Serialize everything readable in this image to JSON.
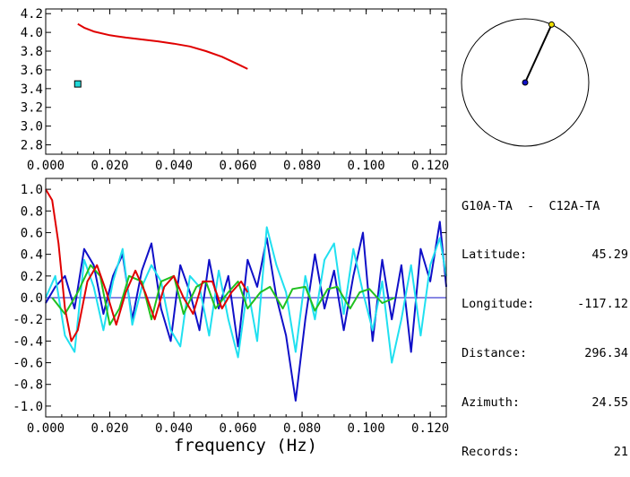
{
  "chart_data": [
    {
      "type": "line",
      "title": "",
      "xlabel": "",
      "ylabel": "",
      "xlim": [
        0.0,
        0.125
      ],
      "ylim": [
        2.7,
        4.25
      ],
      "xticks": [
        "0.000",
        "0.020",
        "0.040",
        "0.060",
        "0.080",
        "0.100",
        "0.120"
      ],
      "xtick_values": [
        0.0,
        0.02,
        0.04,
        0.06,
        0.08,
        0.1,
        0.12
      ],
      "yticks": [
        "2.8",
        "3.0",
        "3.2",
        "3.4",
        "3.6",
        "3.8",
        "4.0",
        "4.2"
      ],
      "ytick_values": [
        2.8,
        3.0,
        3.2,
        3.4,
        3.6,
        3.8,
        4.0,
        4.2
      ],
      "series": [
        {
          "color": "#e00000",
          "x": [
            0.01,
            0.012,
            0.015,
            0.02,
            0.025,
            0.03,
            0.035,
            0.04,
            0.045,
            0.05,
            0.055,
            0.06,
            0.063
          ],
          "y": [
            4.09,
            4.05,
            4.01,
            3.97,
            3.945,
            3.925,
            3.905,
            3.88,
            3.85,
            3.8,
            3.74,
            3.66,
            3.61
          ]
        },
        {
          "color": "#20d8d8",
          "marker": "square",
          "x": [
            0.01
          ],
          "y": [
            3.45
          ]
        }
      ]
    },
    {
      "type": "line",
      "title": "",
      "xlabel": "frequency (Hz)",
      "ylabel": "",
      "xlim": [
        0.0,
        0.125
      ],
      "ylim": [
        -1.1,
        1.1
      ],
      "xticks": [
        "0.000",
        "0.020",
        "0.040",
        "0.060",
        "0.080",
        "0.100",
        "0.120"
      ],
      "xtick_values": [
        0.0,
        0.02,
        0.04,
        0.06,
        0.08,
        0.1,
        0.12
      ],
      "yticks": [
        "1.0",
        "0.8",
        "0.6",
        "0.4",
        "0.2",
        "0.0",
        "-0.2",
        "-0.4",
        "-0.6",
        "-0.8",
        "-1.0"
      ],
      "ytick_values": [
        1.0,
        0.8,
        0.6,
        0.4,
        0.2,
        0.0,
        -0.2,
        -0.4,
        -0.6,
        -0.8,
        -1.0
      ],
      "zero_line": true,
      "series": [
        {
          "color": "#1010c8",
          "x": [
            0.0,
            0.003,
            0.006,
            0.009,
            0.012,
            0.015,
            0.018,
            0.021,
            0.024,
            0.027,
            0.03,
            0.033,
            0.036,
            0.039,
            0.042,
            0.045,
            0.048,
            0.051,
            0.054,
            0.057,
            0.06,
            0.063,
            0.066,
            0.069,
            0.072,
            0.075,
            0.078,
            0.081,
            0.084,
            0.087,
            0.09,
            0.093,
            0.096,
            0.099,
            0.102,
            0.105,
            0.108,
            0.111,
            0.114,
            0.117,
            0.12,
            0.123,
            0.125
          ],
          "y": [
            -0.05,
            0.1,
            0.2,
            -0.1,
            0.45,
            0.3,
            -0.15,
            0.2,
            0.4,
            -0.2,
            0.25,
            0.5,
            -0.1,
            -0.4,
            0.3,
            0.05,
            -0.3,
            0.35,
            -0.1,
            0.2,
            -0.45,
            0.35,
            0.1,
            0.55,
            0.0,
            -0.35,
            -0.95,
            -0.2,
            0.4,
            -0.1,
            0.25,
            -0.3,
            0.2,
            0.6,
            -0.4,
            0.35,
            -0.2,
            0.3,
            -0.5,
            0.45,
            0.15,
            0.7,
            0.1
          ]
        },
        {
          "color": "#20e0f0",
          "x": [
            0.0,
            0.003,
            0.006,
            0.009,
            0.012,
            0.015,
            0.018,
            0.021,
            0.024,
            0.027,
            0.03,
            0.033,
            0.036,
            0.039,
            0.042,
            0.045,
            0.048,
            0.051,
            0.054,
            0.057,
            0.06,
            0.063,
            0.066,
            0.069,
            0.072,
            0.075,
            0.078,
            0.081,
            0.084,
            0.087,
            0.09,
            0.093,
            0.096,
            0.099,
            0.102,
            0.105,
            0.108,
            0.111,
            0.114,
            0.117,
            0.12,
            0.123,
            0.125
          ],
          "y": [
            0.0,
            0.2,
            -0.35,
            -0.5,
            0.35,
            0.1,
            -0.3,
            0.15,
            0.45,
            -0.25,
            0.1,
            0.3,
            0.15,
            -0.3,
            -0.45,
            0.2,
            0.1,
            -0.35,
            0.25,
            -0.2,
            -0.55,
            0.1,
            -0.4,
            0.65,
            0.3,
            0.05,
            -0.5,
            0.2,
            -0.2,
            0.35,
            0.5,
            -0.15,
            0.45,
            0.05,
            -0.3,
            0.15,
            -0.6,
            -0.2,
            0.3,
            -0.35,
            0.3,
            0.55,
            0.2
          ]
        },
        {
          "color": "#20c020",
          "x": [
            0.002,
            0.006,
            0.01,
            0.014,
            0.017,
            0.02,
            0.023,
            0.026,
            0.03,
            0.033,
            0.036,
            0.04,
            0.043,
            0.047,
            0.05,
            0.053,
            0.057,
            0.06,
            0.063,
            0.067,
            0.07,
            0.074,
            0.077,
            0.081,
            0.084,
            0.088,
            0.091,
            0.095,
            0.098,
            0.101,
            0.105,
            0.109
          ],
          "y": [
            0.0,
            -0.15,
            0.05,
            0.3,
            0.2,
            -0.25,
            -0.1,
            0.2,
            0.15,
            -0.2,
            0.15,
            0.2,
            -0.15,
            0.1,
            0.15,
            -0.1,
            0.05,
            0.15,
            -0.1,
            0.05,
            0.1,
            -0.1,
            0.08,
            0.1,
            -0.12,
            0.08,
            0.1,
            -0.1,
            0.05,
            0.08,
            -0.05,
            0.0
          ]
        },
        {
          "color": "#e00000",
          "x": [
            0.0,
            0.002,
            0.004,
            0.006,
            0.008,
            0.01,
            0.013,
            0.016,
            0.019,
            0.022,
            0.025,
            0.028,
            0.031,
            0.034,
            0.037,
            0.04,
            0.043,
            0.046,
            0.049,
            0.052,
            0.055,
            0.058,
            0.061,
            0.063
          ],
          "y": [
            1.0,
            0.9,
            0.5,
            -0.1,
            -0.4,
            -0.3,
            0.15,
            0.3,
            0.05,
            -0.25,
            0.05,
            0.25,
            0.05,
            -0.2,
            0.1,
            0.2,
            0.0,
            -0.15,
            0.15,
            0.15,
            -0.1,
            0.05,
            0.15,
            0.05
          ]
        }
      ]
    }
  ],
  "map": {
    "colors": {
      "circle": "#000000",
      "center": "#1010c8",
      "end": "#f0e000"
    },
    "azimuth_deg": 24.55
  },
  "info": {
    "title": "G10A-TA  -  C12A-TA",
    "rows": [
      {
        "label": "Latitude:",
        "value": "45.29"
      },
      {
        "label": "Longitude:",
        "value": "-117.12"
      },
      {
        "label": "Distance:",
        "value": "296.34"
      },
      {
        "label": "Azimuth:",
        "value": "24.55"
      },
      {
        "label": "Records:",
        "value": "21"
      }
    ]
  }
}
